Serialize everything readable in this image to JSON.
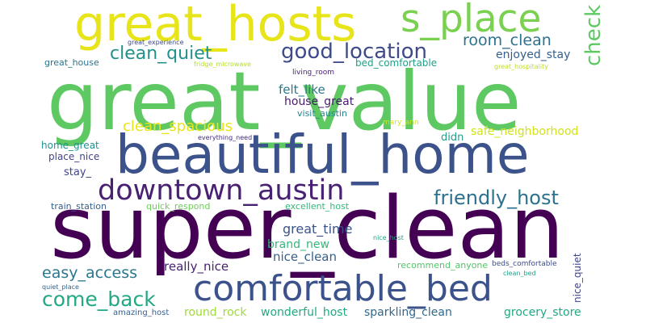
{
  "words": [
    {
      "text": "great_value",
      "color": "#5ec962"
    },
    {
      "text": "super_clean",
      "color": "#440154"
    },
    {
      "text": "beautiful_home",
      "color": "#3b528b"
    },
    {
      "text": "great_hosts",
      "color": "#e7e419"
    },
    {
      "text": "s_place",
      "color": "#7ad151"
    },
    {
      "text": "comfortable_bed",
      "color": "#3b528b"
    },
    {
      "text": "downtown_austin",
      "color": "#482173"
    },
    {
      "text": "friendly_host",
      "color": "#2c728e"
    },
    {
      "text": "good_location",
      "color": "#3e4a89"
    },
    {
      "text": "clean_quiet",
      "color": "#21918c"
    },
    {
      "text": "room_clean",
      "color": "#2c728e"
    },
    {
      "text": "check",
      "color": "#5ec962"
    },
    {
      "text": "come_back",
      "color": "#22a884"
    },
    {
      "text": "easy_access",
      "color": "#2a788e"
    },
    {
      "text": "clean_spacious",
      "color": "#e7e419"
    },
    {
      "text": "great_time",
      "color": "#3b528b"
    },
    {
      "text": "nice_clean",
      "color": "#355f8d"
    },
    {
      "text": "really_nice",
      "color": "#482173"
    },
    {
      "text": "enjoyed_stay",
      "color": "#355f8d"
    },
    {
      "text": "safe_neighborhood",
      "color": "#d2e21b"
    },
    {
      "text": "felt_like",
      "color": "#2a788e"
    },
    {
      "text": "house_great",
      "color": "#481a6c"
    },
    {
      "text": "brand_new",
      "color": "#35b779"
    },
    {
      "text": "wonderful_host",
      "color": "#22a884"
    },
    {
      "text": "round_rock",
      "color": "#a0da39"
    },
    {
      "text": "sparkling_clean",
      "color": "#31688e"
    },
    {
      "text": "grocery_store",
      "color": "#22a884"
    },
    {
      "text": "bed_comfortable",
      "color": "#1fa187"
    },
    {
      "text": "great_house",
      "color": "#2c728e"
    },
    {
      "text": "home_great",
      "color": "#21918c"
    },
    {
      "text": "place_nice",
      "color": "#414487"
    },
    {
      "text": "stay_",
      "color": "#404688"
    },
    {
      "text": "didn",
      "color": "#1f9e89"
    },
    {
      "text": "train_station",
      "color": "#355f8d"
    },
    {
      "text": "quick_respond",
      "color": "#6ece58"
    },
    {
      "text": "excellent_host",
      "color": "#35b779"
    },
    {
      "text": "living_room",
      "color": "#482173"
    },
    {
      "text": "visit_austin",
      "color": "#25858e"
    },
    {
      "text": "everything_need",
      "color": "#472d7b"
    },
    {
      "text": "mary_ann",
      "color": "#d2e21b"
    },
    {
      "text": "great_experience",
      "color": "#3e4a89"
    },
    {
      "text": "fridge_microwave",
      "color": "#b5de2b"
    },
    {
      "text": "great_hospitality",
      "color": "#bddf26"
    },
    {
      "text": "nice_host",
      "color": "#1fa187"
    },
    {
      "text": "nice_quiet",
      "color": "#404688"
    },
    {
      "text": "recommend_anyone",
      "color": "#54c568"
    },
    {
      "text": "beds_comfortable",
      "color": "#3e4a89"
    },
    {
      "text": "clean_bed",
      "color": "#20a386"
    },
    {
      "text": "amazing_host",
      "color": "#355f8d"
    },
    {
      "text": "quiet_place",
      "color": "#33638d"
    }
  ]
}
